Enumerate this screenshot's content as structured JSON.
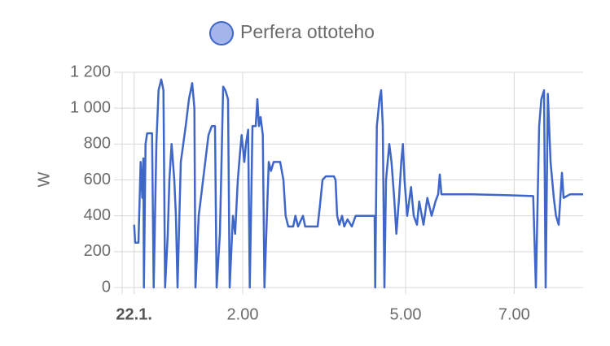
{
  "chart_data": {
    "type": "line",
    "ylabel": "W",
    "xlim": [
      -0.22,
      8.27
    ],
    "ylim": [
      0,
      1200
    ],
    "xticks": [
      {
        "value": 0,
        "label": "22.1."
      },
      {
        "value": 2,
        "label": "2.00"
      },
      {
        "value": 5,
        "label": "5.00"
      },
      {
        "value": 7,
        "label": "7.00"
      }
    ],
    "yticks": [
      0,
      200,
      400,
      600,
      800,
      {
        "value": 1000,
        "label": "1 000"
      },
      {
        "value": 1200,
        "label": "1 200"
      }
    ],
    "grid": true,
    "legend": "top",
    "series": [
      {
        "name": "Perfera ottoteho",
        "color": "#3f66c9",
        "x": [
          0.0,
          0.02,
          0.08,
          0.12,
          0.15,
          0.17,
          0.18,
          0.21,
          0.24,
          0.33,
          0.36,
          0.41,
          0.45,
          0.5,
          0.54,
          0.57,
          0.62,
          0.65,
          0.69,
          0.74,
          0.77,
          0.8,
          0.86,
          0.95,
          1.01,
          1.07,
          1.11,
          1.13,
          1.19,
          1.23,
          1.31,
          1.37,
          1.43,
          1.49,
          1.52,
          1.58,
          1.61,
          1.64,
          1.68,
          1.73,
          1.76,
          1.82,
          1.86,
          1.91,
          1.95,
          1.98,
          2.03,
          2.06,
          2.1,
          2.13,
          2.18,
          2.24,
          2.27,
          2.3,
          2.33,
          2.37,
          2.4,
          2.48,
          2.52,
          2.57,
          2.69,
          2.75,
          2.79,
          2.84,
          2.93,
          2.97,
          3.02,
          3.11,
          3.15,
          3.38,
          3.42,
          3.47,
          3.53,
          3.68,
          3.71,
          3.74,
          3.78,
          3.83,
          3.87,
          3.93,
          4.01,
          4.08,
          4.43,
          4.44,
          4.47,
          4.52,
          4.55,
          4.58,
          4.61,
          4.64,
          4.7,
          4.74,
          4.79,
          4.83,
          4.88,
          4.92,
          4.95,
          4.98,
          5.03,
          5.1,
          5.15,
          5.21,
          5.25,
          5.33,
          5.4,
          5.48,
          5.55,
          5.6,
          5.63,
          5.66,
          6.23,
          6.83,
          7.35,
          7.4,
          7.46,
          7.5,
          7.55,
          7.58,
          7.62,
          7.67,
          7.73,
          7.77,
          7.82,
          7.88,
          7.91,
          8.03,
          8.27
        ],
        "values": [
          350,
          250,
          250,
          700,
          500,
          720,
          0,
          800,
          860,
          860,
          0,
          800,
          1100,
          1160,
          1100,
          0,
          300,
          600,
          800,
          600,
          400,
          0,
          700,
          900,
          1050,
          1140,
          1000,
          0,
          400,
          500,
          700,
          850,
          900,
          900,
          0,
          300,
          700,
          1120,
          1100,
          1050,
          0,
          400,
          300,
          600,
          750,
          850,
          700,
          800,
          880,
          0,
          900,
          900,
          1050,
          900,
          950,
          850,
          0,
          700,
          650,
          700,
          700,
          600,
          400,
          340,
          340,
          400,
          340,
          400,
          340,
          340,
          450,
          600,
          620,
          620,
          600,
          400,
          350,
          400,
          340,
          380,
          340,
          400,
          400,
          0,
          900,
          1050,
          1100,
          900,
          0,
          600,
          800,
          700,
          500,
          300,
          500,
          700,
          800,
          600,
          400,
          560,
          400,
          350,
          480,
          350,
          500,
          400,
          480,
          520,
          630,
          520,
          520,
          515,
          510,
          0,
          900,
          1050,
          1100,
          0,
          1080,
          700,
          500,
          400,
          350,
          640,
          500,
          520,
          520
        ]
      }
    ]
  }
}
